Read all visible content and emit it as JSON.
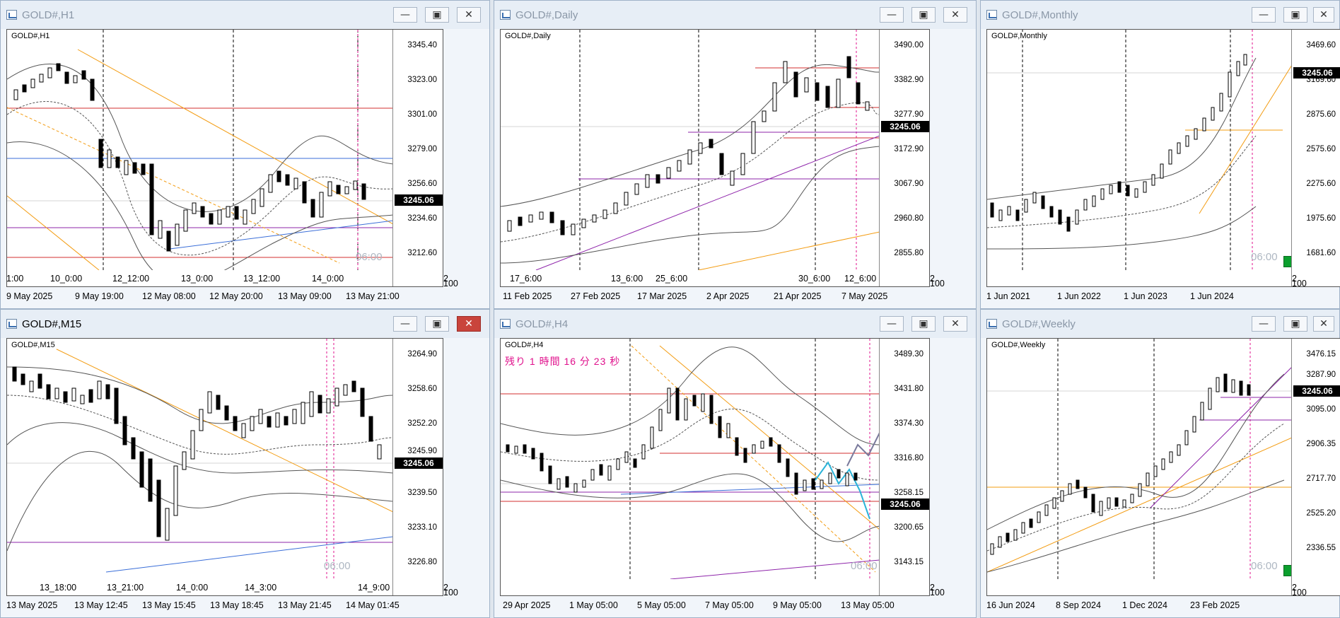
{
  "windows": [
    {
      "title": "GOLD#,H1",
      "symbol": "GOLD#,H1",
      "prices": [
        "3345.40",
        "3323.00",
        "3301.00",
        "3279.00",
        "3256.60",
        "3234.60",
        "3212.60"
      ],
      "current": "3245.06",
      "time_marks": [
        "1:00",
        "10_0:00",
        "12_12:00",
        "13_0:00",
        "13_12:00",
        "14_0:00"
      ],
      "dates": [
        "9 May 2025",
        "9 May 19:00",
        "12 May 08:00",
        "12 May 20:00",
        "13 May 09:00",
        "13 May 21:00"
      ],
      "clock": "06:00"
    },
    {
      "title": "GOLD#,Daily",
      "symbol": "GOLD#,Daily",
      "prices": [
        "3490.00",
        "3382.90",
        "3277.90",
        "3172.90",
        "3067.90",
        "2960.80",
        "2855.80"
      ],
      "current": "3245.06",
      "time_marks": [
        "17_6:00",
        "13_6:00",
        "25_6:00",
        "30_6:00",
        "12_6:00"
      ],
      "dates": [
        "11 Feb 2025",
        "27 Feb 2025",
        "17 Mar 2025",
        "2 Apr 2025",
        "21 Apr 2025",
        "7 May 2025"
      ]
    },
    {
      "title": "GOLD#,Monthly",
      "symbol": "GOLD#,Monthly",
      "prices": [
        "3469.60",
        "3169.60",
        "2875.60",
        "2575.60",
        "2275.60",
        "1975.60",
        "1681.60"
      ],
      "current": "3245.06",
      "dates": [
        "1 Jun 2021",
        "1 Jun 2022",
        "1 Jun 2023",
        "1 Jun 2024"
      ],
      "clock": "06:00"
    },
    {
      "title": "GOLD#,M15",
      "symbol": "GOLD#,M15",
      "prices": [
        "3264.90",
        "3258.60",
        "3252.20",
        "3245.90",
        "3239.50",
        "3233.10",
        "3226.80"
      ],
      "current": "3245.06",
      "time_marks": [
        "13_18:00",
        "13_21:00",
        "14_0:00",
        "14_3:00",
        "14_9:00"
      ],
      "dates": [
        "13 May 2025",
        "13 May 12:45",
        "13 May 15:45",
        "13 May 18:45",
        "13 May 21:45",
        "14 May 01:45"
      ],
      "clock": "06:00"
    },
    {
      "title": "GOLD#,H4",
      "symbol": "GOLD#,H4",
      "prices": [
        "3489.30",
        "3431.80",
        "3374.30",
        "3316.80",
        "3258.15",
        "3200.65",
        "3143.15"
      ],
      "current": "3245.06",
      "dates": [
        "29 Apr 2025",
        "1 May 05:00",
        "5 May 05:00",
        "7 May 05:00",
        "9 May 05:00",
        "13 May 05:00"
      ],
      "clock": "06:00",
      "note": "残り 1 時間 16 分 23 秒"
    },
    {
      "title": "GOLD#,Weekly",
      "symbol": "GOLD#,Weekly",
      "prices": [
        "3476.15",
        "3287.90",
        "3095.00",
        "2906.35",
        "2717.70",
        "2525.20",
        "2336.55"
      ],
      "current": "3245.06",
      "dates": [
        "16 Jun 2024",
        "8 Sep 2024",
        "1 Dec 2024",
        "23 Feb 2025"
      ],
      "clock": "06:00"
    }
  ],
  "axis_small": [
    "2",
    "100"
  ],
  "buttons": {
    "minimize": "—",
    "maximize": "▣",
    "close": "✕"
  },
  "colors": {
    "bull": "#ffffff",
    "bear": "#000000",
    "trend": "#f39c12",
    "support": "#8e24aa",
    "resist": "#d32f2f",
    "bband": "#555555"
  }
}
